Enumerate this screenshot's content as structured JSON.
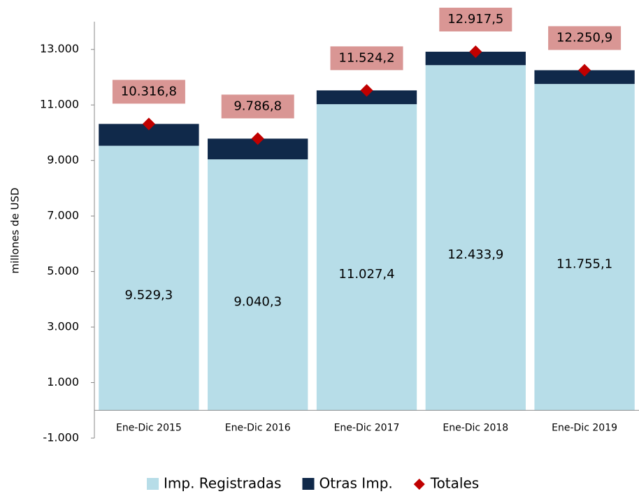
{
  "chart_data": {
    "type": "stacked_bar",
    "categories": [
      "Ene-Dic 2015",
      "Ene-Dic 2016",
      "Ene-Dic 2017",
      "Ene-Dic 2018",
      "Ene-Dic 2019"
    ],
    "y_label": "millones de  USD",
    "series": [
      {
        "name": "Imp. Registradas",
        "color": "#b7dde8",
        "values": [
          9529.3,
          9040.3,
          11027.4,
          12433.9,
          11755.1
        ],
        "value_labels": [
          "9.529,3",
          "9.040,3",
          "11.027,4",
          "12.433,9",
          "11.755,1"
        ]
      },
      {
        "name": "Otras Imp.",
        "color": "#10294a",
        "values": [
          787.5,
          746.5,
          496.8,
          483.6,
          495.8
        ]
      }
    ],
    "totals": {
      "name": "Totales",
      "color": "#c00000",
      "values": [
        10316.8,
        9786.8,
        11524.2,
        12917.5,
        12250.9
      ],
      "value_labels": [
        "10.316,8",
        "9.786,8",
        "11.524,2",
        "12.917,5",
        "12.250,9"
      ]
    },
    "ylim": [
      -1000,
      14000
    ],
    "yticks": [
      {
        "value": -1000,
        "label": "-1.000"
      },
      {
        "value": 1000,
        "label": "1.000"
      },
      {
        "value": 3000,
        "label": "3.000"
      },
      {
        "value": 5000,
        "label": "5.000"
      },
      {
        "value": 7000,
        "label": "7.000"
      },
      {
        "value": 9000,
        "label": "9.000"
      },
      {
        "value": 11000,
        "label": "11.000"
      },
      {
        "value": 13000,
        "label": "13.000"
      }
    ]
  }
}
